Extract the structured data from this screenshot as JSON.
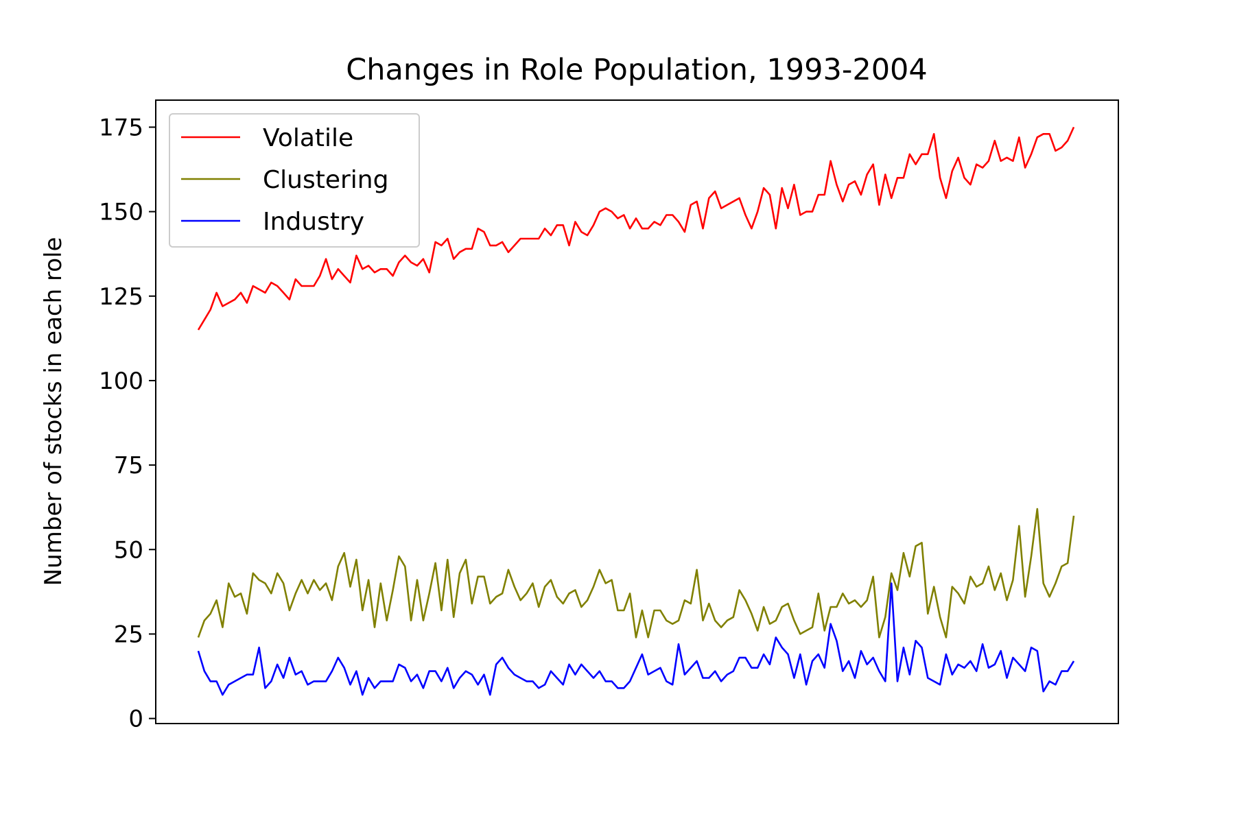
{
  "chart_data": {
    "type": "line",
    "title": "Changes in Role Population, 1993-2004",
    "xlabel": "",
    "ylabel": "Number of stocks in each role",
    "ylim": [
      -1.5,
      183
    ],
    "yticks": [
      0,
      25,
      50,
      75,
      100,
      125,
      150,
      175
    ],
    "xticks": [],
    "grid": false,
    "legend_position": "top-left",
    "series": [
      {
        "name": "Volatile",
        "color": "#ff0000",
        "values": [
          115,
          118,
          121,
          126,
          122,
          123,
          124,
          126,
          123,
          128,
          127,
          126,
          129,
          128,
          126,
          124,
          130,
          128,
          128,
          128,
          131,
          136,
          130,
          133,
          131,
          129,
          137,
          133,
          134,
          132,
          133,
          133,
          131,
          135,
          137,
          135,
          134,
          136,
          132,
          141,
          140,
          142,
          136,
          138,
          139,
          139,
          145,
          144,
          140,
          140,
          141,
          138,
          140,
          142,
          142,
          142,
          142,
          145,
          143,
          146,
          146,
          140,
          147,
          144,
          143,
          146,
          150,
          151,
          150,
          148,
          149,
          145,
          148,
          145,
          145,
          147,
          146,
          149,
          149,
          147,
          144,
          152,
          153,
          145,
          154,
          156,
          151,
          152,
          153,
          154,
          149,
          145,
          150,
          157,
          155,
          145,
          157,
          151,
          158,
          149,
          150,
          150,
          155,
          155,
          165,
          158,
          153,
          158,
          159,
          155,
          161,
          164,
          152,
          161,
          154,
          160,
          160,
          167,
          164,
          167,
          167,
          173,
          160,
          154,
          162,
          166,
          160,
          158,
          164,
          163,
          165,
          171,
          165,
          166,
          165,
          172,
          163,
          167,
          172,
          173,
          173,
          168,
          169,
          171,
          175
        ]
      },
      {
        "name": "Clustering",
        "color": "#808000",
        "values": [
          24,
          29,
          31,
          35,
          27,
          40,
          36,
          37,
          31,
          43,
          41,
          40,
          37,
          43,
          40,
          32,
          37,
          41,
          37,
          41,
          38,
          40,
          35,
          45,
          49,
          39,
          47,
          32,
          41,
          27,
          40,
          29,
          38,
          48,
          45,
          29,
          41,
          29,
          37,
          46,
          32,
          47,
          30,
          43,
          47,
          34,
          42,
          42,
          34,
          36,
          37,
          44,
          39,
          35,
          37,
          40,
          33,
          39,
          41,
          36,
          34,
          37,
          38,
          33,
          35,
          39,
          44,
          40,
          41,
          32,
          32,
          37,
          24,
          32,
          24,
          32,
          32,
          29,
          28,
          29,
          35,
          34,
          44,
          29,
          34,
          29,
          27,
          29,
          30,
          38,
          35,
          31,
          26,
          33,
          28,
          29,
          33,
          34,
          29,
          25,
          26,
          27,
          37,
          26,
          33,
          33,
          37,
          34,
          35,
          33,
          35,
          42,
          24,
          30,
          43,
          38,
          49,
          42,
          51,
          52,
          31,
          39,
          30,
          24,
          39,
          37,
          34,
          42,
          39,
          40,
          45,
          38,
          43,
          35,
          41,
          57,
          36,
          48,
          62,
          40,
          36,
          40,
          45,
          46,
          60
        ]
      },
      {
        "name": "Industry",
        "color": "#0000ff",
        "values": [
          20,
          14,
          11,
          11,
          7,
          10,
          11,
          12,
          13,
          13,
          21,
          9,
          11,
          16,
          12,
          18,
          13,
          14,
          10,
          11,
          11,
          11,
          14,
          18,
          15,
          10,
          14,
          7,
          12,
          9,
          11,
          11,
          11,
          16,
          15,
          11,
          13,
          9,
          14,
          14,
          11,
          15,
          9,
          12,
          14,
          13,
          10,
          13,
          7,
          16,
          18,
          15,
          13,
          12,
          11,
          11,
          9,
          10,
          14,
          12,
          10,
          16,
          13,
          16,
          14,
          12,
          14,
          11,
          11,
          9,
          9,
          11,
          15,
          19,
          13,
          14,
          15,
          11,
          10,
          22,
          13,
          15,
          17,
          12,
          12,
          14,
          11,
          13,
          14,
          18,
          18,
          15,
          15,
          19,
          16,
          24,
          21,
          19,
          12,
          19,
          10,
          17,
          19,
          15,
          28,
          23,
          14,
          17,
          12,
          20,
          16,
          18,
          14,
          11,
          40,
          11,
          21,
          13,
          23,
          21,
          12,
          11,
          10,
          19,
          13,
          16,
          15,
          17,
          14,
          22,
          15,
          16,
          20,
          12,
          18,
          16,
          14,
          21,
          20,
          8,
          11,
          10,
          14,
          14,
          17
        ]
      }
    ]
  }
}
